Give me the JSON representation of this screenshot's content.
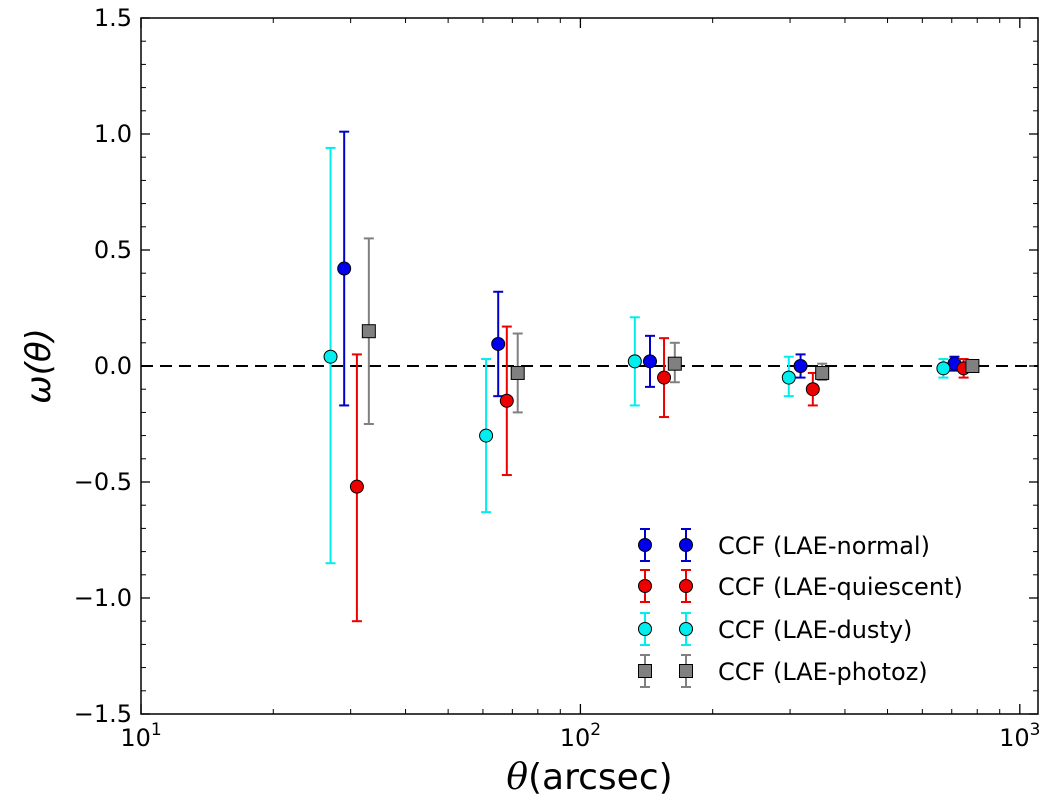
{
  "chart_data": {
    "type": "scatter",
    "xlabel_symbol": "θ",
    "xlabel_unit": "(arcsec)",
    "ylabel": "ω(θ)",
    "xscale": "log",
    "xlim": [
      10,
      1100
    ],
    "ylim": [
      -1.5,
      1.5
    ],
    "x_tick_labels": [
      {
        "x": 10,
        "base": "10",
        "exp": "1"
      },
      {
        "x": 100,
        "base": "10",
        "exp": "2"
      },
      {
        "x": 1000,
        "base": "10",
        "exp": "3"
      }
    ],
    "y_ticks": [
      -1.5,
      -1.0,
      -0.5,
      0.0,
      0.5,
      1.0,
      1.5
    ],
    "y_tick_labels": [
      "−1.5",
      "−1.0",
      "−0.5",
      "0.0",
      "0.5",
      "1.0",
      "1.5"
    ],
    "reference_line": {
      "y": 0,
      "style": "dashed",
      "color": "#000000"
    },
    "legend_position": "bottom-right",
    "series": [
      {
        "name": "CCF (LAE-normal)",
        "marker": "circle",
        "color": "#0000ee",
        "errorbar_color": "#0000cc",
        "points": [
          {
            "x": 29,
            "y": 0.42,
            "lo": -0.17,
            "hi": 1.01
          },
          {
            "x": 65,
            "y": 0.095,
            "lo": -0.13,
            "hi": 0.32
          },
          {
            "x": 144,
            "y": 0.02,
            "lo": -0.09,
            "hi": 0.13
          },
          {
            "x": 317,
            "y": 0.0,
            "lo": -0.05,
            "hi": 0.05
          },
          {
            "x": 710,
            "y": 0.01,
            "lo": -0.02,
            "hi": 0.04
          }
        ]
      },
      {
        "name": "CCF (LAE-quiescent)",
        "marker": "circle",
        "color": "#ee0000",
        "errorbar_color": "#ee0000",
        "points": [
          {
            "x": 31,
            "y": -0.52,
            "lo": -1.1,
            "hi": 0.05
          },
          {
            "x": 68,
            "y": -0.15,
            "lo": -0.47,
            "hi": 0.17
          },
          {
            "x": 155,
            "y": -0.05,
            "lo": -0.22,
            "hi": 0.12
          },
          {
            "x": 338,
            "y": -0.1,
            "lo": -0.17,
            "hi": -0.03
          },
          {
            "x": 745,
            "y": -0.01,
            "lo": -0.05,
            "hi": 0.03
          }
        ]
      },
      {
        "name": "CCF (LAE-dusty)",
        "marker": "circle",
        "color": "#00eeee",
        "errorbar_color": "#00eeee",
        "points": [
          {
            "x": 27,
            "y": 0.04,
            "lo": -0.85,
            "hi": 0.94
          },
          {
            "x": 61,
            "y": -0.3,
            "lo": -0.63,
            "hi": 0.03
          },
          {
            "x": 133,
            "y": 0.02,
            "lo": -0.17,
            "hi": 0.21
          },
          {
            "x": 298,
            "y": -0.05,
            "lo": -0.13,
            "hi": 0.04
          },
          {
            "x": 670,
            "y": -0.01,
            "lo": -0.05,
            "hi": 0.03
          }
        ]
      },
      {
        "name": "CCF (LAE-photoz)",
        "marker": "square",
        "color": "#808080",
        "errorbar_color": "#808080",
        "points": [
          {
            "x": 33,
            "y": 0.15,
            "lo": -0.25,
            "hi": 0.55
          },
          {
            "x": 72,
            "y": -0.03,
            "lo": -0.2,
            "hi": 0.14
          },
          {
            "x": 164,
            "y": 0.01,
            "lo": -0.07,
            "hi": 0.1
          },
          {
            "x": 355,
            "y": -0.03,
            "lo": -0.06,
            "hi": 0.01
          },
          {
            "x": 780,
            "y": 0.0,
            "lo": -0.02,
            "hi": 0.02
          }
        ]
      }
    ]
  }
}
